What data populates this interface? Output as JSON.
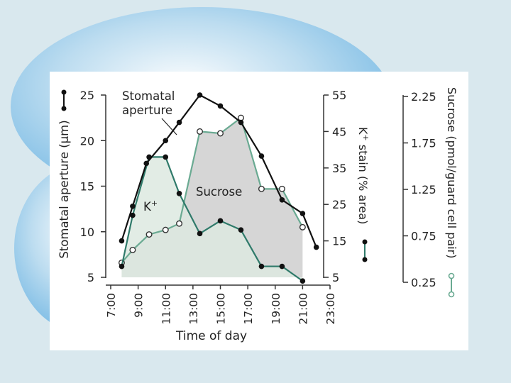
{
  "colors": {
    "aperture": "#111111",
    "potassium": "#2f7a6a",
    "sucrose": "#6aaa92",
    "sucrose_fill": "#d6d6d6",
    "potassium_fill": "#dde9e1"
  },
  "chart_data": {
    "type": "line",
    "xlabel": "Time of day",
    "x_ticks": [
      "7:00",
      "9:00",
      "11:00",
      "13:00",
      "15:00",
      "17:00",
      "19:00",
      "21:00",
      "23:00"
    ],
    "xlim": [
      7,
      23
    ],
    "axes": {
      "left": {
        "label_main": "Stomatal aperture (",
        "label_mu": "μ",
        "label_rest": "m)",
        "ticks": [
          "5",
          "10",
          "15",
          "20",
          "25"
        ],
        "lim": [
          5,
          25
        ]
      },
      "middle": {
        "label_main": "K",
        "label_sup": "+",
        "label_rest": " stain (% area)",
        "ticks": [
          "5",
          "15",
          "25",
          "35",
          "45",
          "55"
        ],
        "lim": [
          5,
          55
        ]
      },
      "right": {
        "label": "Sucrose (pmol/guard cell pair)",
        "ticks": [
          "0.25",
          "0.75",
          "1.25",
          "1.75",
          "2.25"
        ],
        "lim": [
          0.25,
          2.25
        ]
      }
    },
    "annotations": {
      "aperture_line1": "Stomatal",
      "aperture_line2": "aperture",
      "sucrose": "Sucrose",
      "k_main": "K",
      "k_sup": "+"
    },
    "series": [
      {
        "name": "Stomatal aperture",
        "axis": "left",
        "marker": "filled",
        "x": [
          7.8,
          8.6,
          9.6,
          11.0,
          12.0,
          13.5,
          15.0,
          16.5,
          18.0,
          19.5,
          21.0,
          22.0
        ],
        "y": [
          9.0,
          12.8,
          17.5,
          20.0,
          22.0,
          25.0,
          23.8,
          22.0,
          18.3,
          13.5,
          12.0,
          8.3
        ]
      },
      {
        "name": "K+ stain",
        "axis": "middle",
        "marker": "filled",
        "x": [
          7.8,
          8.6,
          9.8,
          11.0,
          12.0,
          13.5,
          15.0,
          16.5,
          18.0,
          19.5,
          21.0
        ],
        "y": [
          8,
          22,
          38,
          38,
          28,
          17,
          20.5,
          18,
          8,
          8,
          4
        ]
      },
      {
        "name": "Sucrose",
        "axis": "right",
        "marker": "open",
        "x": [
          7.8,
          8.6,
          9.8,
          11.0,
          12.0,
          13.5,
          15.0,
          16.5,
          18.0,
          19.5,
          21.0
        ],
        "y": [
          0.41,
          0.55,
          0.72,
          0.77,
          0.84,
          1.85,
          1.83,
          2.0,
          1.22,
          1.22,
          0.8
        ]
      }
    ]
  }
}
